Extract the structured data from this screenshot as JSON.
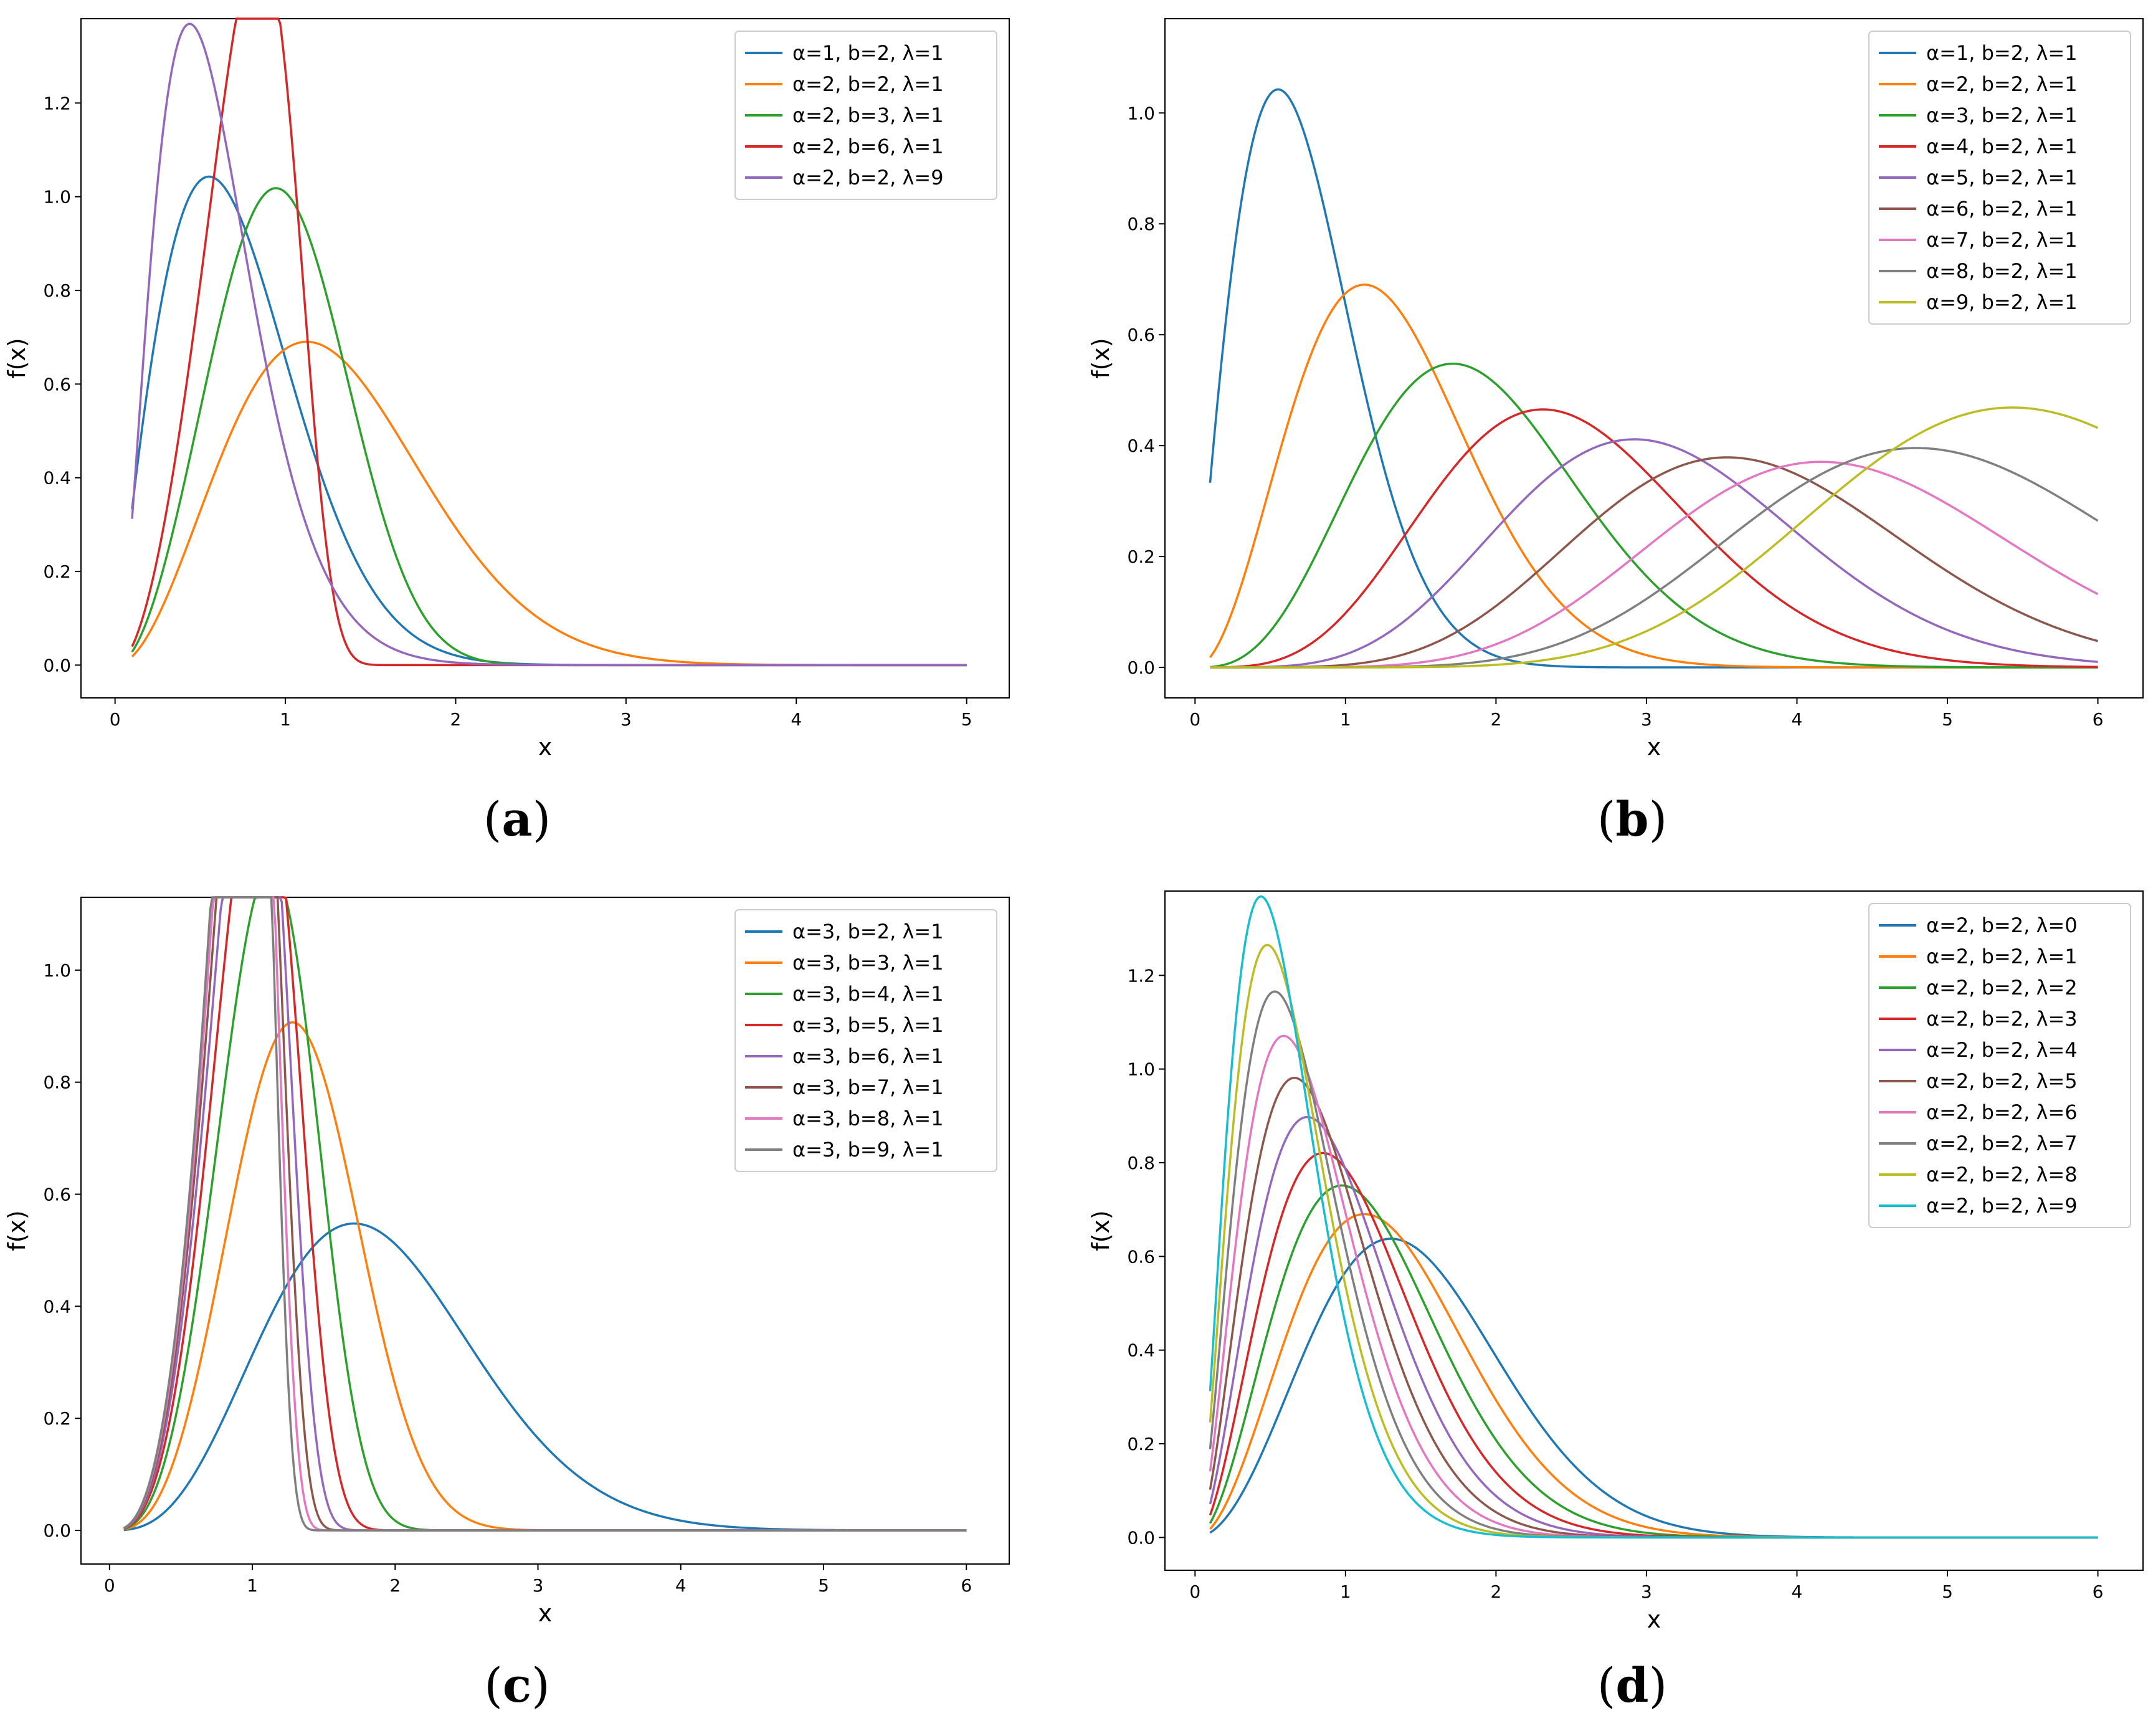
{
  "chart_data": [
    {
      "type": "line",
      "panel": "a",
      "caption": "a",
      "xlabel": "x",
      "ylabel": "f(x)",
      "xlim": [
        -0.2,
        5.25
      ],
      "ylim": [
        -0.07,
        1.38
      ],
      "xticks": [
        0,
        1,
        2,
        3,
        4,
        5
      ],
      "yticks": [
        0.0,
        0.2,
        0.4,
        0.6,
        0.8,
        1.0,
        1.2
      ],
      "x_range": [
        0.1,
        5
      ],
      "legend_position": "top-right",
      "series": [
        {
          "name": "α=1, b=2, λ=1",
          "alpha": 1,
          "b": 2,
          "lambda": 1,
          "color": "#1f77b4"
        },
        {
          "name": "α=2, b=2, λ=1",
          "alpha": 2,
          "b": 2,
          "lambda": 1,
          "color": "#ff7f0e"
        },
        {
          "name": "α=2, b=3, λ=1",
          "alpha": 2,
          "b": 3,
          "lambda": 1,
          "color": "#2ca02c"
        },
        {
          "name": "α=2, b=6, λ=1",
          "alpha": 2,
          "b": 6,
          "lambda": 1,
          "color": "#d62728"
        },
        {
          "name": "α=2, b=2, λ=9",
          "alpha": 2,
          "b": 2,
          "lambda": 9,
          "color": "#9467bd"
        }
      ]
    },
    {
      "type": "line",
      "panel": "b",
      "caption": "b",
      "xlabel": "x",
      "ylabel": "f(x)",
      "xlim": [
        -0.2,
        6.3
      ],
      "ylim": [
        -0.055,
        1.17
      ],
      "xticks": [
        0,
        1,
        2,
        3,
        4,
        5,
        6
      ],
      "yticks": [
        0.0,
        0.2,
        0.4,
        0.6,
        0.8,
        1.0
      ],
      "x_range": [
        0.1,
        6
      ],
      "legend_position": "top-right",
      "series": [
        {
          "name": "α=1, b=2, λ=1",
          "alpha": 1,
          "b": 2,
          "lambda": 1,
          "color": "#1f77b4"
        },
        {
          "name": "α=2, b=2, λ=1",
          "alpha": 2,
          "b": 2,
          "lambda": 1,
          "color": "#ff7f0e"
        },
        {
          "name": "α=3, b=2, λ=1",
          "alpha": 3,
          "b": 2,
          "lambda": 1,
          "color": "#2ca02c"
        },
        {
          "name": "α=4, b=2, λ=1",
          "alpha": 4,
          "b": 2,
          "lambda": 1,
          "color": "#d62728"
        },
        {
          "name": "α=5, b=2, λ=1",
          "alpha": 5,
          "b": 2,
          "lambda": 1,
          "color": "#9467bd"
        },
        {
          "name": "α=6, b=2, λ=1",
          "alpha": 6,
          "b": 2,
          "lambda": 1,
          "color": "#8c564b"
        },
        {
          "name": "α=7, b=2, λ=1",
          "alpha": 7,
          "b": 2,
          "lambda": 1,
          "color": "#e377c2"
        },
        {
          "name": "α=8, b=2, λ=1",
          "alpha": 8,
          "b": 2,
          "lambda": 1,
          "color": "#7f7f7f"
        },
        {
          "name": "α=9, b=2, λ=1",
          "alpha": 9,
          "b": 2,
          "lambda": 1,
          "color": "#bcbd22"
        }
      ]
    },
    {
      "type": "line",
      "panel": "c",
      "caption": "c",
      "xlabel": "x",
      "ylabel": "f(x)",
      "xlim": [
        -0.2,
        6.3
      ],
      "ylim": [
        -0.06,
        1.13
      ],
      "xticks": [
        0,
        1,
        2,
        3,
        4,
        5,
        6
      ],
      "yticks": [
        0.0,
        0.2,
        0.4,
        0.6,
        0.8,
        1.0
      ],
      "x_range": [
        0.1,
        6
      ],
      "legend_position": "top-right",
      "series": [
        {
          "name": "α=3, b=2, λ=1",
          "alpha": 3,
          "b": 2,
          "lambda": 1,
          "color": "#1f77b4"
        },
        {
          "name": "α=3, b=3, λ=1",
          "alpha": 3,
          "b": 3,
          "lambda": 1,
          "color": "#ff7f0e"
        },
        {
          "name": "α=3, b=4, λ=1",
          "alpha": 3,
          "b": 4,
          "lambda": 1,
          "color": "#2ca02c"
        },
        {
          "name": "α=3, b=5, λ=1",
          "alpha": 3,
          "b": 5,
          "lambda": 1,
          "color": "#d62728"
        },
        {
          "name": "α=3, b=6, λ=1",
          "alpha": 3,
          "b": 6,
          "lambda": 1,
          "color": "#9467bd"
        },
        {
          "name": "α=3, b=7, λ=1",
          "alpha": 3,
          "b": 7,
          "lambda": 1,
          "color": "#8c564b"
        },
        {
          "name": "α=3, b=8, λ=1",
          "alpha": 3,
          "b": 8,
          "lambda": 1,
          "color": "#e377c2"
        },
        {
          "name": "α=3, b=9, λ=1",
          "alpha": 3,
          "b": 9,
          "lambda": 1,
          "color": "#7f7f7f"
        }
      ]
    },
    {
      "type": "line",
      "panel": "d",
      "caption": "d",
      "xlabel": "x",
      "ylabel": "f(x)",
      "xlim": [
        -0.2,
        6.3
      ],
      "ylim": [
        -0.07,
        1.38
      ],
      "xticks": [
        0,
        1,
        2,
        3,
        4,
        5,
        6
      ],
      "yticks": [
        0.0,
        0.2,
        0.4,
        0.6,
        0.8,
        1.0,
        1.2
      ],
      "x_range": [
        0.1,
        6
      ],
      "legend_position": "top-right",
      "series": [
        {
          "name": "α=2, b=2, λ=0",
          "alpha": 2,
          "b": 2,
          "lambda": 0,
          "color": "#1f77b4"
        },
        {
          "name": "α=2, b=2, λ=1",
          "alpha": 2,
          "b": 2,
          "lambda": 1,
          "color": "#ff7f0e"
        },
        {
          "name": "α=2, b=2, λ=2",
          "alpha": 2,
          "b": 2,
          "lambda": 2,
          "color": "#2ca02c"
        },
        {
          "name": "α=2, b=2, λ=3",
          "alpha": 2,
          "b": 2,
          "lambda": 3,
          "color": "#d62728"
        },
        {
          "name": "α=2, b=2, λ=4",
          "alpha": 2,
          "b": 2,
          "lambda": 4,
          "color": "#9467bd"
        },
        {
          "name": "α=2, b=2, λ=5",
          "alpha": 2,
          "b": 2,
          "lambda": 5,
          "color": "#8c564b"
        },
        {
          "name": "α=2, b=2, λ=6",
          "alpha": 2,
          "b": 2,
          "lambda": 6,
          "color": "#e377c2"
        },
        {
          "name": "α=2, b=2, λ=7",
          "alpha": 2,
          "b": 2,
          "lambda": 7,
          "color": "#7f7f7f"
        },
        {
          "name": "α=2, b=2, λ=8",
          "alpha": 2,
          "b": 2,
          "lambda": 8,
          "color": "#bcbd22"
        },
        {
          "name": "α=2, b=2, λ=9",
          "alpha": 2,
          "b": 2,
          "lambda": 9,
          "color": "#17becf"
        }
      ]
    }
  ]
}
